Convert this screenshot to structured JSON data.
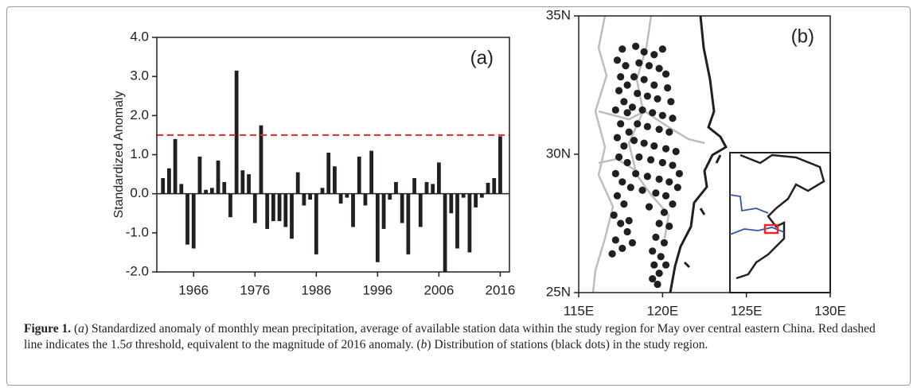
{
  "chart_data": [
    {
      "type": "bar",
      "panel_label": "(a)",
      "y_label": "Standardized Anomaly",
      "color": "#231f20",
      "x": [
        1961,
        1962,
        1963,
        1964,
        1965,
        1966,
        1967,
        1968,
        1969,
        1970,
        1971,
        1972,
        1973,
        1974,
        1975,
        1976,
        1977,
        1978,
        1979,
        1980,
        1981,
        1982,
        1983,
        1984,
        1985,
        1986,
        1987,
        1988,
        1989,
        1990,
        1991,
        1992,
        1993,
        1994,
        1995,
        1996,
        1997,
        1998,
        1999,
        2000,
        2001,
        2002,
        2003,
        2004,
        2005,
        2006,
        2007,
        2008,
        2009,
        2010,
        2011,
        2012,
        2013,
        2014,
        2015,
        2016
      ],
      "values": [
        0.4,
        0.65,
        1.4,
        0.25,
        -1.3,
        -1.4,
        0.95,
        0.1,
        0.15,
        0.85,
        0.3,
        -0.6,
        3.15,
        0.6,
        0.5,
        -0.75,
        1.75,
        -0.9,
        -0.7,
        -0.7,
        -0.85,
        -1.15,
        0.55,
        -0.3,
        -0.15,
        -1.55,
        0.15,
        1.05,
        0.7,
        -0.25,
        -0.1,
        -0.85,
        0.95,
        -0.3,
        1.1,
        -1.75,
        -0.9,
        -0.15,
        0.3,
        -0.75,
        -1.55,
        0.4,
        -0.85,
        0.3,
        0.25,
        0.8,
        -2.0,
        -0.5,
        -1.4,
        -0.1,
        -1.5,
        -0.35,
        -0.1,
        0.28,
        0.4,
        1.47
      ],
      "xlim": [
        1960,
        2017.5
      ],
      "xticks": [
        1966,
        1976,
        1986,
        1996,
        2006,
        2016
      ],
      "ylim": [
        -2,
        4
      ],
      "yticks": [
        {
          "value": -2,
          "label": "-2.0"
        },
        {
          "value": -1,
          "label": "-1.0"
        },
        {
          "value": 0,
          "label": "0.0"
        },
        {
          "value": 1,
          "label": "1.0"
        },
        {
          "value": 2,
          "label": "2.0"
        },
        {
          "value": 3,
          "label": "3.0"
        },
        {
          "value": 4,
          "label": "4.0"
        }
      ],
      "threshold": 1.5,
      "threshold_color": "#e8262a"
    },
    {
      "type": "scatter",
      "panel_label": "(b)",
      "color": "#231f20",
      "x": [
        117.6,
        117.3,
        117.8,
        117.5,
        117.9,
        117.4,
        117.7,
        117.2,
        117.9,
        117.5,
        118.0,
        117.3,
        117.7,
        117.4,
        117.9,
        117.2,
        117.6,
        118.1,
        117.3,
        117.7,
        117.1,
        117.5,
        117.9,
        117.2,
        117.6,
        117.0,
        118.2,
        118.0,
        118.4,
        118.9,
        119.5,
        120.0,
        118.6,
        119.2,
        119.8,
        120.2,
        118.3,
        118.9,
        119.5,
        120.3,
        118.5,
        119.1,
        119.7,
        120.5,
        118.2,
        118.8,
        119.4,
        120.0,
        120.6,
        118.5,
        119.1,
        119.8,
        120.4,
        118.3,
        118.9,
        119.5,
        120.2,
        120.8,
        118.6,
        119.3,
        120.0,
        120.6,
        118.4,
        119.1,
        119.8,
        120.4,
        121.0,
        118.8,
        119.6,
        120.2,
        120.9,
        119.2,
        120.1,
        120.6,
        119.8,
        120.4,
        119.6,
        120.1,
        119.4,
        119.9,
        119.5,
        119.8,
        119.4,
        119.7,
        120.2
      ],
      "y": [
        33.8,
        33.4,
        33.2,
        32.8,
        32.5,
        32.3,
        31.9,
        31.6,
        31.5,
        31.1,
        30.8,
        30.6,
        30.3,
        29.9,
        29.7,
        29.3,
        29.0,
        28.8,
        28.5,
        28.2,
        27.8,
        27.5,
        27.2,
        26.9,
        26.6,
        26.4,
        26.8,
        27.6,
        33.9,
        33.7,
        33.6,
        33.8,
        33.3,
        33.2,
        33.1,
        32.9,
        32.8,
        32.7,
        32.5,
        32.4,
        32.2,
        32.1,
        32.0,
        31.9,
        31.7,
        31.6,
        31.5,
        31.4,
        31.3,
        31.1,
        31.0,
        30.9,
        30.8,
        30.5,
        30.4,
        30.3,
        30.2,
        30.1,
        29.9,
        29.8,
        29.7,
        29.6,
        29.3,
        29.2,
        29.1,
        29.0,
        29.3,
        28.7,
        28.6,
        28.5,
        28.8,
        28.1,
        27.9,
        28.2,
        27.5,
        27.4,
        27.0,
        26.8,
        26.5,
        26.3,
        26.0,
        25.7,
        25.5,
        25.3,
        26.0
      ],
      "xlim": [
        115,
        130
      ],
      "xticks": [
        {
          "value": 115,
          "label": "115E"
        },
        {
          "value": 120,
          "label": "120E"
        },
        {
          "value": 125,
          "label": "125E"
        },
        {
          "value": 130,
          "label": "130E"
        }
      ],
      "ylim": [
        25,
        35
      ],
      "yticks": [
        {
          "value": 25,
          "label": "25N"
        },
        {
          "value": 30,
          "label": "30N"
        },
        {
          "value": 35,
          "label": "35N"
        }
      ]
    }
  ],
  "caption": {
    "label": "Figure 1.",
    "parts": [
      "(",
      "a",
      ") Standardized anomaly of monthly mean precipitation, average of available station data within the study region for May over central eastern China. Red dashed line indicates the 1.5",
      "σ",
      " threshold, equivalent to the magnitude of 2016 anomaly. (",
      "b",
      ") Distribution of stations (black dots) in the study region."
    ]
  }
}
